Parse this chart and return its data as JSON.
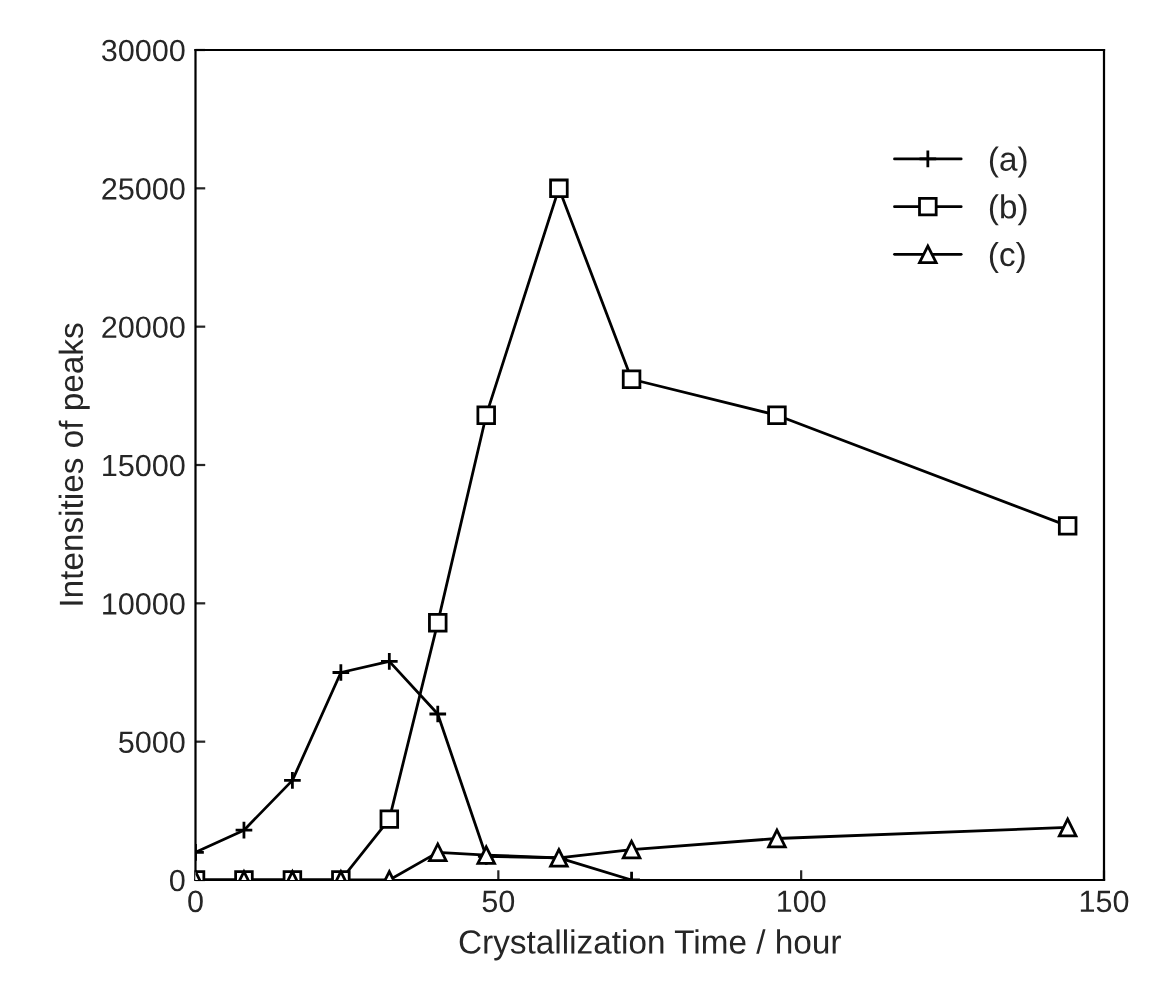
{
  "chart_data": {
    "type": "line",
    "xlabel": "Crystallization Time / hour",
    "ylabel": "Intensities of peaks",
    "x": [
      0,
      8,
      16,
      24,
      32,
      40,
      48,
      60,
      72,
      96,
      144
    ],
    "series": [
      {
        "name": "(a)",
        "color": "#000000",
        "marker": "cross",
        "x": [
          0,
          8,
          16,
          24,
          32,
          40,
          48,
          60,
          72
        ],
        "values": [
          1000,
          1800,
          3600,
          7500,
          7900,
          6000,
          850,
          800,
          0
        ]
      },
      {
        "name": "(b)",
        "color": "#000000",
        "marker": "square",
        "values": [
          0,
          0,
          0,
          0,
          2200,
          9300,
          16800,
          25000,
          18100,
          16800,
          12800
        ]
      },
      {
        "name": "(c)",
        "color": "#000000",
        "marker": "triangle",
        "values": [
          0,
          0,
          0,
          0,
          0,
          1000,
          900,
          800,
          1100,
          1500,
          1900
        ]
      }
    ],
    "xlim": [
      0,
      150
    ],
    "xticks": [
      0,
      50,
      100,
      150
    ],
    "ylim": [
      0,
      30000
    ],
    "yticks": [
      0,
      5000,
      10000,
      15000,
      20000,
      25000,
      30000
    ],
    "grid": false,
    "legend": "top right",
    "line_style": "solid"
  }
}
